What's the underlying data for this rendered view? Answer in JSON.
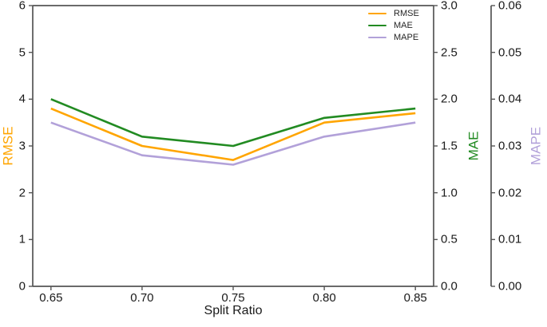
{
  "chart_data": {
    "type": "line",
    "title": "",
    "xlabel": "Split Ratio",
    "x": [
      0.65,
      0.7,
      0.75,
      0.8,
      0.85
    ],
    "xtick_labels": [
      "0.65",
      "0.70",
      "0.75",
      "0.80",
      "0.85"
    ],
    "xlim": [
      0.64,
      0.86
    ],
    "grid": false,
    "legend": {
      "position": "upper right",
      "frame": false,
      "entries": [
        "RMSE",
        "MAE",
        "MAPE"
      ]
    },
    "axes": [
      {
        "id": "rmse",
        "label": "RMSE",
        "side": "left",
        "color": "#FFA500",
        "min": 0,
        "max": 6,
        "tick_values": [
          0,
          1,
          2,
          3,
          4,
          5,
          6
        ],
        "tick_labels": [
          "0",
          "1",
          "2",
          "3",
          "4",
          "5",
          "6"
        ]
      },
      {
        "id": "mae",
        "label": "MAE",
        "side": "right",
        "color": "#228B22",
        "min": 0,
        "max": 3,
        "tick_values": [
          0,
          0.5,
          1,
          1.5,
          2,
          2.5,
          3
        ],
        "tick_labels": [
          "0.0",
          "0.5",
          "1.0",
          "1.5",
          "2.0",
          "2.5",
          "3.0"
        ]
      },
      {
        "id": "mape",
        "label": "MAPE",
        "side": "right-detached",
        "color": "#B2A1D9",
        "min": 0,
        "max": 0.06,
        "tick_values": [
          0,
          0.01,
          0.02,
          0.03,
          0.04,
          0.05,
          0.06
        ],
        "tick_labels": [
          "0.00",
          "0.01",
          "0.02",
          "0.03",
          "0.04",
          "0.05",
          "0.06"
        ]
      }
    ],
    "series": [
      {
        "name": "RMSE",
        "axis": "rmse",
        "color": "#FFA500",
        "values": [
          3.8,
          3.0,
          2.7,
          3.5,
          3.7
        ]
      },
      {
        "name": "MAE",
        "axis": "mae",
        "color": "#228B22",
        "values": [
          2.0,
          1.6,
          1.5,
          1.8,
          1.9
        ]
      },
      {
        "name": "MAPE",
        "axis": "mape",
        "color": "#B2A1D9",
        "values": [
          0.035,
          0.028,
          0.026,
          0.032,
          0.035
        ]
      }
    ]
  }
}
